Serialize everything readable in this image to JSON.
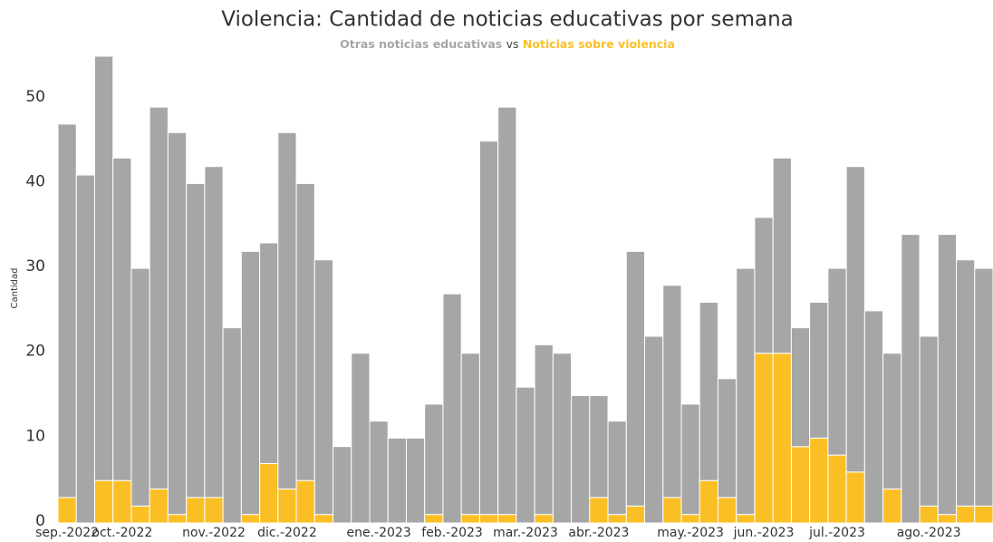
{
  "chart_data": {
    "type": "stacked_bar",
    "title": "Violencia: Cantidad de noticias educativas por semana",
    "legend_separator": "vs",
    "y_label": "Cantidad",
    "categories": [
      "sep.-2022",
      null,
      null,
      "oct.-2022",
      null,
      null,
      null,
      null,
      "nov.-2022",
      null,
      null,
      null,
      "dic.-2022",
      null,
      null,
      null,
      null,
      "ene.-2023",
      null,
      null,
      null,
      "feb.-2023",
      null,
      null,
      null,
      "mar.-2023",
      null,
      null,
      null,
      "abr.-2023",
      null,
      null,
      null,
      null,
      "may.-2023",
      null,
      null,
      null,
      "jun.-2023",
      null,
      null,
      null,
      "jul.-2023",
      null,
      null,
      null,
      null,
      "ago.-2023",
      null,
      null,
      null
    ],
    "series": [
      {
        "name": "Noticias sobre violencia",
        "color": "#fbbf26",
        "values": [
          3,
          0,
          5,
          5,
          2,
          4,
          1,
          3,
          3,
          0,
          1,
          7,
          4,
          5,
          1,
          0,
          0,
          0,
          0,
          0,
          1,
          0,
          1,
          1,
          1,
          0,
          1,
          0,
          0,
          3,
          1,
          2,
          0,
          3,
          1,
          5,
          3,
          1,
          20,
          20,
          9,
          10,
          8,
          6,
          0,
          4,
          0,
          2,
          1,
          2,
          2
        ]
      },
      {
        "name": "Otras noticias educativas",
        "color": "#a6a6a6",
        "values": [
          44,
          41,
          50,
          38,
          28,
          45,
          45,
          37,
          39,
          23,
          31,
          26,
          42,
          35,
          30,
          9,
          20,
          12,
          10,
          10,
          13,
          27,
          19,
          44,
          48,
          16,
          20,
          20,
          15,
          12,
          11,
          30,
          22,
          25,
          13,
          21,
          14,
          29,
          16,
          23,
          14,
          16,
          22,
          36,
          25,
          16,
          34,
          20,
          33,
          29,
          28
        ]
      }
    ],
    "ylim": [
      0,
      55
    ],
    "yticks": [
      0,
      10,
      20,
      30,
      40,
      50
    ],
    "grid": false
  }
}
